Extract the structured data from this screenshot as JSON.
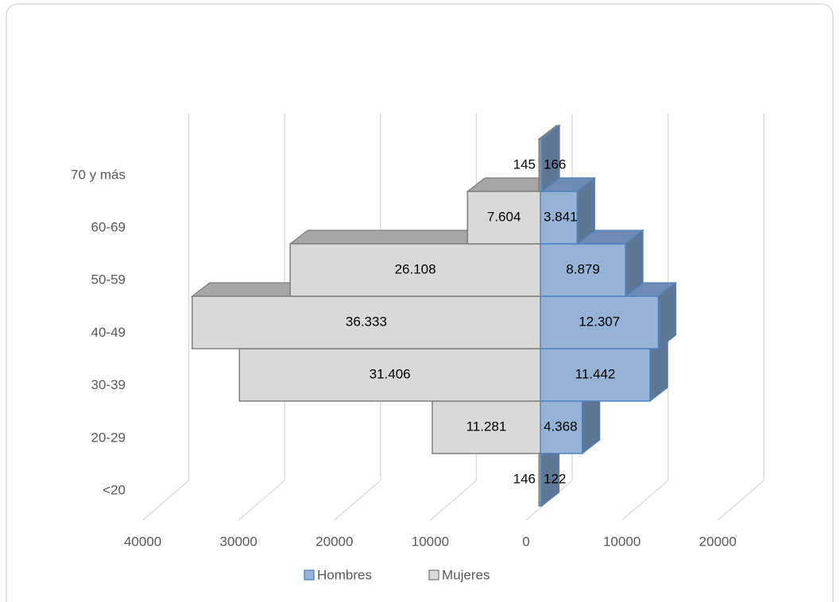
{
  "chart_data": {
    "type": "pyramid3d",
    "categories": [
      "<20",
      "20-29",
      "30-39",
      "40-49",
      "50-59",
      "60-69",
      "70 y más"
    ],
    "series": [
      {
        "name": "Hombres",
        "color": "#95b3d7",
        "side": "right",
        "values": [
          122,
          4368,
          11442,
          12307,
          8879,
          3841,
          166
        ],
        "value_labels": [
          "122",
          "4.368",
          "11.442",
          "12.307",
          "8.879",
          "3.841",
          "166"
        ]
      },
      {
        "name": "Mujeres",
        "color": "#d9d9d9",
        "side": "left",
        "values": [
          146,
          11281,
          31406,
          36333,
          26108,
          7604,
          145
        ],
        "value_labels": [
          "146",
          "11.281",
          "31.406",
          "36.333",
          "26.108",
          "7.604",
          "145"
        ]
      }
    ],
    "xlim": [
      -40000,
      20000
    ],
    "xticks": [
      {
        "value": -40000,
        "label": "40000"
      },
      {
        "value": -30000,
        "label": "30000"
      },
      {
        "value": -20000,
        "label": "20000"
      },
      {
        "value": -10000,
        "label": "10000"
      },
      0,
      10000,
      20000
    ],
    "grid": true,
    "legend": "bottom"
  }
}
